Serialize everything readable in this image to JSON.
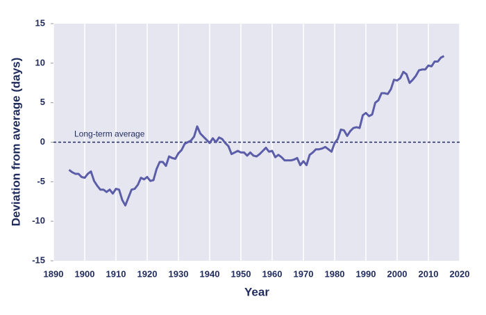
{
  "chart_data": {
    "type": "line",
    "x_label": "Year",
    "y_label": "Deviation from average (days)",
    "x": [
      1895,
      1896,
      1897,
      1898,
      1899,
      1900,
      1901,
      1902,
      1903,
      1904,
      1905,
      1906,
      1907,
      1908,
      1909,
      1910,
      1911,
      1912,
      1913,
      1914,
      1915,
      1916,
      1917,
      1918,
      1919,
      1920,
      1921,
      1922,
      1923,
      1924,
      1925,
      1926,
      1927,
      1928,
      1929,
      1930,
      1931,
      1932,
      1933,
      1934,
      1935,
      1936,
      1937,
      1938,
      1939,
      1940,
      1941,
      1942,
      1943,
      1944,
      1945,
      1946,
      1947,
      1948,
      1949,
      1950,
      1951,
      1952,
      1953,
      1954,
      1955,
      1956,
      1957,
      1958,
      1959,
      1960,
      1961,
      1962,
      1963,
      1964,
      1965,
      1966,
      1967,
      1968,
      1969,
      1970,
      1971,
      1972,
      1973,
      1974,
      1975,
      1976,
      1977,
      1978,
      1979,
      1980,
      1981,
      1982,
      1983,
      1984,
      1985,
      1986,
      1987,
      1988,
      1989,
      1990,
      1991,
      1992,
      1993,
      1994,
      1995,
      1996,
      1997,
      1998,
      1999,
      2000,
      2001,
      2002,
      2003,
      2004,
      2005,
      2006,
      2007,
      2008,
      2009,
      2010,
      2011,
      2012,
      2013,
      2014,
      2015
    ],
    "series": [
      {
        "color": "#5b5da8",
        "values": [
          -3.5,
          -3.8,
          -4.0,
          -4.0,
          -4.4,
          -4.5,
          -4.0,
          -3.7,
          -4.9,
          -5.5,
          -6.0,
          -6.0,
          -6.3,
          -6.0,
          -6.5,
          -5.9,
          -6.0,
          -7.3,
          -8.0,
          -7.0,
          -6.0,
          -5.9,
          -5.4,
          -4.5,
          -4.7,
          -4.4,
          -4.9,
          -4.8,
          -3.4,
          -2.5,
          -2.5,
          -3.0,
          -1.8,
          -2.0,
          -2.1,
          -1.4,
          -1.0,
          -0.2,
          0.0,
          0.2,
          0.7,
          2.0,
          1.1,
          0.7,
          0.3,
          -0.1,
          0.5,
          0.0,
          0.6,
          0.4,
          -0.1,
          -0.5,
          -1.5,
          -1.3,
          -1.1,
          -1.3,
          -1.3,
          -1.7,
          -1.3,
          -1.7,
          -1.8,
          -1.5,
          -1.1,
          -0.7,
          -1.2,
          -1.1,
          -1.9,
          -1.6,
          -1.9,
          -2.3,
          -2.3,
          -2.3,
          -2.2,
          -2.0,
          -2.9,
          -2.4,
          -2.9,
          -1.6,
          -1.3,
          -0.9,
          -0.9,
          -0.8,
          -0.6,
          -0.9,
          -1.2,
          -0.1,
          0.4,
          1.6,
          1.5,
          0.8,
          1.4,
          1.8,
          1.9,
          1.8,
          3.4,
          3.7,
          3.3,
          3.5,
          5.0,
          5.3,
          6.2,
          6.2,
          6.1,
          6.7,
          7.9,
          7.8,
          8.1,
          8.9,
          8.6,
          7.5,
          7.9,
          8.4,
          9.1,
          9.2,
          9.2,
          9.7,
          9.6,
          10.2,
          10.2,
          10.7,
          10.9
        ]
      }
    ],
    "xlim": [
      1890,
      2020
    ],
    "xticks": [
      1890,
      1900,
      1910,
      1920,
      1930,
      1940,
      1950,
      1960,
      1970,
      1980,
      1990,
      2000,
      2010,
      2020
    ],
    "ylim": [
      -15,
      15
    ],
    "yticks": [
      -15,
      -10,
      -5,
      0,
      5,
      10,
      15
    ],
    "grid": "x",
    "reference_line": {
      "value": 0,
      "label": "Long-term average",
      "color": "#1f2a5c"
    }
  }
}
